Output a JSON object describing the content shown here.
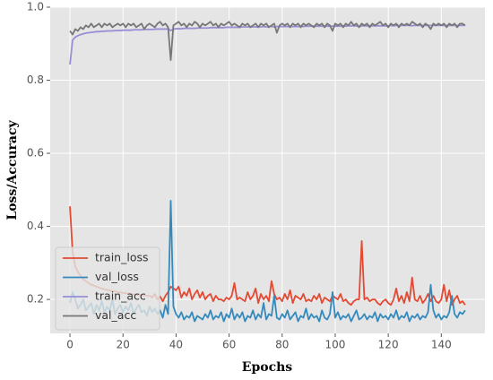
{
  "chart_data": {
    "type": "line",
    "xlabel": "Epochs",
    "ylabel": "Loss/Accuracy",
    "grid": true,
    "legend": "lower left",
    "xlim": [
      -7.45,
      156.45
    ],
    "ylim": [
      0.107,
      1.0
    ],
    "xticks": [
      0,
      20,
      40,
      60,
      80,
      100,
      120,
      140
    ],
    "yticks": [
      0.2,
      0.4,
      0.6,
      0.8,
      {
        "value": 1,
        "label": "1.0"
      }
    ],
    "x": [
      0,
      1,
      2,
      3,
      4,
      5,
      6,
      7,
      8,
      9,
      10,
      11,
      12,
      13,
      14,
      15,
      16,
      17,
      18,
      19,
      20,
      21,
      22,
      23,
      24,
      25,
      26,
      27,
      28,
      29,
      30,
      31,
      32,
      33,
      34,
      35,
      36,
      37,
      38,
      39,
      40,
      41,
      42,
      43,
      44,
      45,
      46,
      47,
      48,
      49,
      50,
      51,
      52,
      53,
      54,
      55,
      56,
      57,
      58,
      59,
      60,
      61,
      62,
      63,
      64,
      65,
      66,
      67,
      68,
      69,
      70,
      71,
      72,
      73,
      74,
      75,
      76,
      77,
      78,
      79,
      80,
      81,
      82,
      83,
      84,
      85,
      86,
      87,
      88,
      89,
      90,
      91,
      92,
      93,
      94,
      95,
      96,
      97,
      98,
      99,
      100,
      101,
      102,
      103,
      104,
      105,
      106,
      107,
      108,
      109,
      110,
      111,
      112,
      113,
      114,
      115,
      116,
      117,
      118,
      119,
      120,
      121,
      122,
      123,
      124,
      125,
      126,
      127,
      128,
      129,
      130,
      131,
      132,
      133,
      134,
      135,
      136,
      137,
      138,
      139,
      140,
      141,
      142,
      143,
      144,
      145,
      146,
      147,
      148,
      149
    ],
    "series": [
      {
        "name": "train_loss",
        "color": "#E24A33",
        "values": [
          0.455,
          0.33,
          0.29,
          0.275,
          0.265,
          0.255,
          0.25,
          0.245,
          0.24,
          0.238,
          0.235,
          0.232,
          0.23,
          0.228,
          0.226,
          0.225,
          0.223,
          0.222,
          0.22,
          0.219,
          0.218,
          0.217,
          0.216,
          0.215,
          0.214,
          0.213,
          0.212,
          0.212,
          0.211,
          0.21,
          0.21,
          0.205,
          0.215,
          0.2,
          0.208,
          0.195,
          0.21,
          0.22,
          0.235,
          0.23,
          0.225,
          0.235,
          0.205,
          0.22,
          0.21,
          0.23,
          0.2,
          0.215,
          0.225,
          0.205,
          0.22,
          0.2,
          0.21,
          0.215,
          0.195,
          0.21,
          0.2,
          0.2,
          0.195,
          0.205,
          0.2,
          0.21,
          0.245,
          0.2,
          0.205,
          0.2,
          0.195,
          0.22,
          0.2,
          0.21,
          0.23,
          0.19,
          0.215,
          0.2,
          0.21,
          0.195,
          0.25,
          0.215,
          0.2,
          0.205,
          0.195,
          0.215,
          0.2,
          0.225,
          0.19,
          0.21,
          0.205,
          0.2,
          0.215,
          0.195,
          0.2,
          0.195,
          0.21,
          0.2,
          0.215,
          0.19,
          0.205,
          0.2,
          0.195,
          0.21,
          0.205,
          0.2,
          0.215,
          0.195,
          0.2,
          0.19,
          0.185,
          0.195,
          0.2,
          0.2,
          0.36,
          0.2,
          0.205,
          0.195,
          0.2,
          0.2,
          0.19,
          0.185,
          0.195,
          0.2,
          0.19,
          0.185,
          0.2,
          0.23,
          0.195,
          0.21,
          0.19,
          0.22,
          0.195,
          0.26,
          0.2,
          0.195,
          0.21,
          0.19,
          0.2,
          0.215,
          0.195,
          0.21,
          0.195,
          0.19,
          0.2,
          0.24,
          0.195,
          0.225,
          0.185,
          0.2,
          0.21,
          0.19,
          0.195,
          0.185
        ]
      },
      {
        "name": "val_loss",
        "color": "#348ABD",
        "values": [
          0.19,
          0.22,
          0.2,
          0.175,
          0.185,
          0.2,
          0.17,
          0.18,
          0.19,
          0.16,
          0.185,
          0.17,
          0.195,
          0.165,
          0.18,
          0.17,
          0.2,
          0.16,
          0.175,
          0.185,
          0.165,
          0.18,
          0.17,
          0.19,
          0.16,
          0.175,
          0.185,
          0.165,
          0.17,
          0.155,
          0.18,
          0.165,
          0.175,
          0.16,
          0.17,
          0.15,
          0.185,
          0.16,
          0.47,
          0.18,
          0.16,
          0.15,
          0.165,
          0.145,
          0.155,
          0.15,
          0.165,
          0.14,
          0.155,
          0.15,
          0.145,
          0.16,
          0.15,
          0.17,
          0.145,
          0.155,
          0.15,
          0.165,
          0.14,
          0.16,
          0.15,
          0.175,
          0.145,
          0.16,
          0.15,
          0.165,
          0.14,
          0.155,
          0.15,
          0.17,
          0.145,
          0.16,
          0.15,
          0.19,
          0.145,
          0.16,
          0.155,
          0.21,
          0.15,
          0.145,
          0.16,
          0.15,
          0.17,
          0.145,
          0.155,
          0.165,
          0.14,
          0.155,
          0.15,
          0.175,
          0.145,
          0.16,
          0.15,
          0.155,
          0.14,
          0.17,
          0.15,
          0.145,
          0.16,
          0.22,
          0.15,
          0.165,
          0.145,
          0.155,
          0.15,
          0.16,
          0.14,
          0.155,
          0.17,
          0.145,
          0.15,
          0.16,
          0.145,
          0.155,
          0.15,
          0.165,
          0.14,
          0.16,
          0.15,
          0.155,
          0.145,
          0.16,
          0.15,
          0.17,
          0.145,
          0.155,
          0.15,
          0.165,
          0.14,
          0.155,
          0.15,
          0.16,
          0.145,
          0.155,
          0.15,
          0.165,
          0.24,
          0.17,
          0.15,
          0.16,
          0.145,
          0.155,
          0.15,
          0.165,
          0.21,
          0.16,
          0.15,
          0.165,
          0.16,
          0.17
        ]
      },
      {
        "name": "train_acc",
        "color": "#988ED5",
        "values": [
          0.843,
          0.91,
          0.918,
          0.922,
          0.925,
          0.927,
          0.929,
          0.93,
          0.931,
          0.932,
          0.933,
          0.933,
          0.934,
          0.934,
          0.935,
          0.935,
          0.935,
          0.936,
          0.936,
          0.936,
          0.937,
          0.937,
          0.937,
          0.937,
          0.938,
          0.938,
          0.938,
          0.938,
          0.939,
          0.939,
          0.939,
          0.939,
          0.94,
          0.94,
          0.94,
          0.94,
          0.94,
          0.941,
          0.936,
          0.94,
          0.941,
          0.941,
          0.941,
          0.942,
          0.942,
          0.942,
          0.942,
          0.942,
          0.943,
          0.943,
          0.943,
          0.943,
          0.943,
          0.944,
          0.944,
          0.944,
          0.944,
          0.944,
          0.944,
          0.945,
          0.945,
          0.945,
          0.945,
          0.945,
          0.945,
          0.946,
          0.946,
          0.946,
          0.946,
          0.946,
          0.946,
          0.946,
          0.946,
          0.947,
          0.946,
          0.947,
          0.947,
          0.946,
          0.947,
          0.947,
          0.947,
          0.947,
          0.947,
          0.947,
          0.947,
          0.947,
          0.947,
          0.948,
          0.947,
          0.948,
          0.948,
          0.948,
          0.948,
          0.948,
          0.948,
          0.948,
          0.948,
          0.948,
          0.948,
          0.948,
          0.948,
          0.948,
          0.948,
          0.949,
          0.948,
          0.949,
          0.949,
          0.949,
          0.949,
          0.947,
          0.949,
          0.949,
          0.949,
          0.949,
          0.949,
          0.949,
          0.949,
          0.949,
          0.949,
          0.949,
          0.949,
          0.95,
          0.949,
          0.95,
          0.95,
          0.95,
          0.95,
          0.95,
          0.95,
          0.949,
          0.95,
          0.95,
          0.95,
          0.95,
          0.95,
          0.95,
          0.95,
          0.95,
          0.95,
          0.95,
          0.95,
          0.95,
          0.95,
          0.95,
          0.95,
          0.95,
          0.95,
          0.95,
          0.95,
          0.95
        ]
      },
      {
        "name": "val_acc",
        "color": "#777777",
        "values": [
          0.935,
          0.925,
          0.94,
          0.935,
          0.945,
          0.94,
          0.95,
          0.945,
          0.955,
          0.945,
          0.95,
          0.955,
          0.945,
          0.955,
          0.95,
          0.955,
          0.945,
          0.95,
          0.955,
          0.95,
          0.955,
          0.945,
          0.955,
          0.95,
          0.955,
          0.945,
          0.95,
          0.955,
          0.94,
          0.95,
          0.955,
          0.95,
          0.945,
          0.955,
          0.96,
          0.95,
          0.955,
          0.945,
          0.855,
          0.95,
          0.955,
          0.96,
          0.95,
          0.955,
          0.945,
          0.955,
          0.95,
          0.96,
          0.955,
          0.945,
          0.955,
          0.95,
          0.955,
          0.96,
          0.95,
          0.955,
          0.945,
          0.955,
          0.95,
          0.955,
          0.96,
          0.95,
          0.955,
          0.95,
          0.945,
          0.955,
          0.95,
          0.955,
          0.945,
          0.95,
          0.955,
          0.945,
          0.955,
          0.95,
          0.955,
          0.945,
          0.95,
          0.955,
          0.93,
          0.95,
          0.955,
          0.95,
          0.955,
          0.945,
          0.955,
          0.95,
          0.955,
          0.945,
          0.955,
          0.95,
          0.955,
          0.95,
          0.945,
          0.955,
          0.95,
          0.955,
          0.945,
          0.955,
          0.95,
          0.935,
          0.955,
          0.95,
          0.955,
          0.945,
          0.955,
          0.95,
          0.96,
          0.95,
          0.955,
          0.945,
          0.955,
          0.95,
          0.955,
          0.945,
          0.955,
          0.95,
          0.955,
          0.96,
          0.95,
          0.955,
          0.945,
          0.955,
          0.95,
          0.955,
          0.945,
          0.955,
          0.95,
          0.955,
          0.95,
          0.96,
          0.955,
          0.95,
          0.955,
          0.945,
          0.955,
          0.95,
          0.94,
          0.955,
          0.95,
          0.955,
          0.95,
          0.955,
          0.945,
          0.955,
          0.95,
          0.955,
          0.945,
          0.955,
          0.955,
          0.95
        ]
      }
    ]
  }
}
